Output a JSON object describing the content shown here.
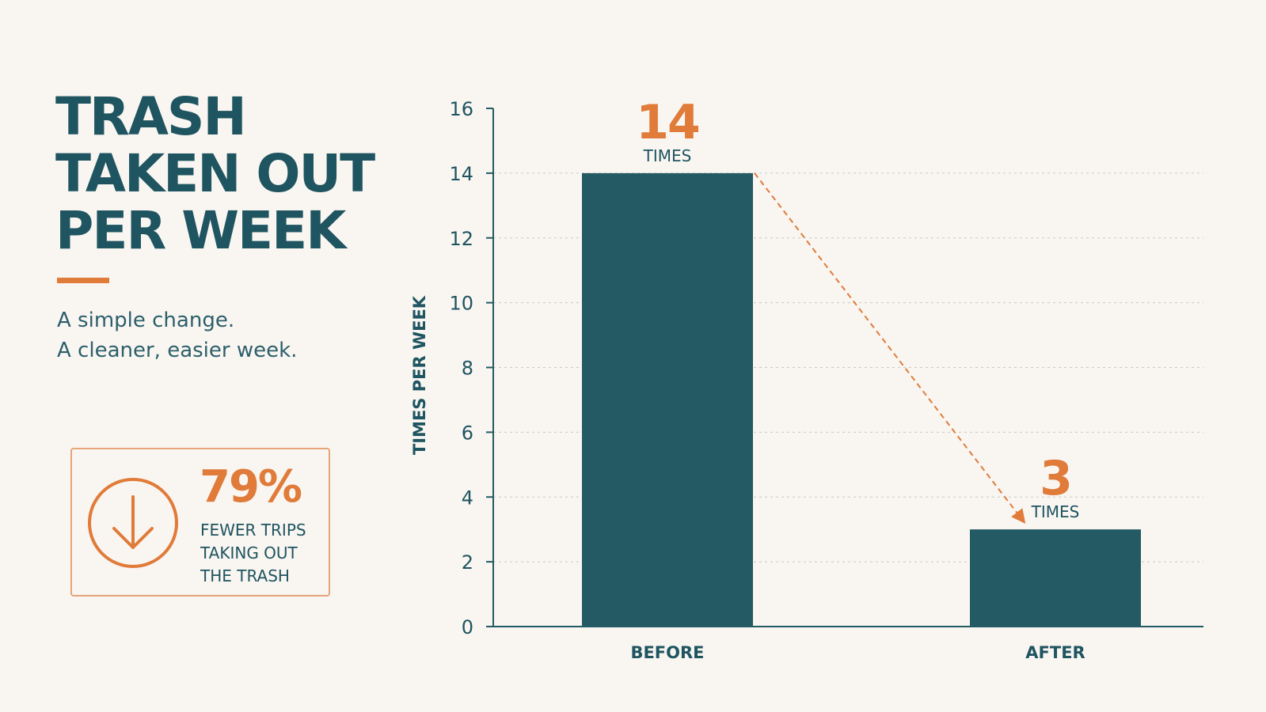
{
  "title_lines": [
    "TRASH",
    "TAKEN OUT",
    "PER WEEK"
  ],
  "subtitle_lines": [
    "A simple change.",
    "A cleaner, easier week."
  ],
  "stat": {
    "value": "79%",
    "caption_lines": [
      "FEWER TRIPS",
      "TAKING OUT",
      "THE TRASH"
    ],
    "icon": "arrow-down-circle-icon"
  },
  "colors": {
    "primary": "#235a64",
    "accent": "#e07b3a",
    "background": "#f9f6f1",
    "text": "#1f5461"
  },
  "chart_data": {
    "type": "bar",
    "categories": [
      "BEFORE",
      "AFTER"
    ],
    "values": [
      14,
      3
    ],
    "value_labels": [
      "14",
      "3"
    ],
    "unit_label": "TIMES",
    "ylabel": "TIMES PER WEEK",
    "ylim": [
      0,
      16
    ],
    "yticks": [
      0,
      2,
      4,
      6,
      8,
      10,
      12,
      14,
      16
    ],
    "grid": true,
    "trend_arrow": {
      "from": "BEFORE",
      "to": "AFTER",
      "style": "dashed"
    }
  }
}
